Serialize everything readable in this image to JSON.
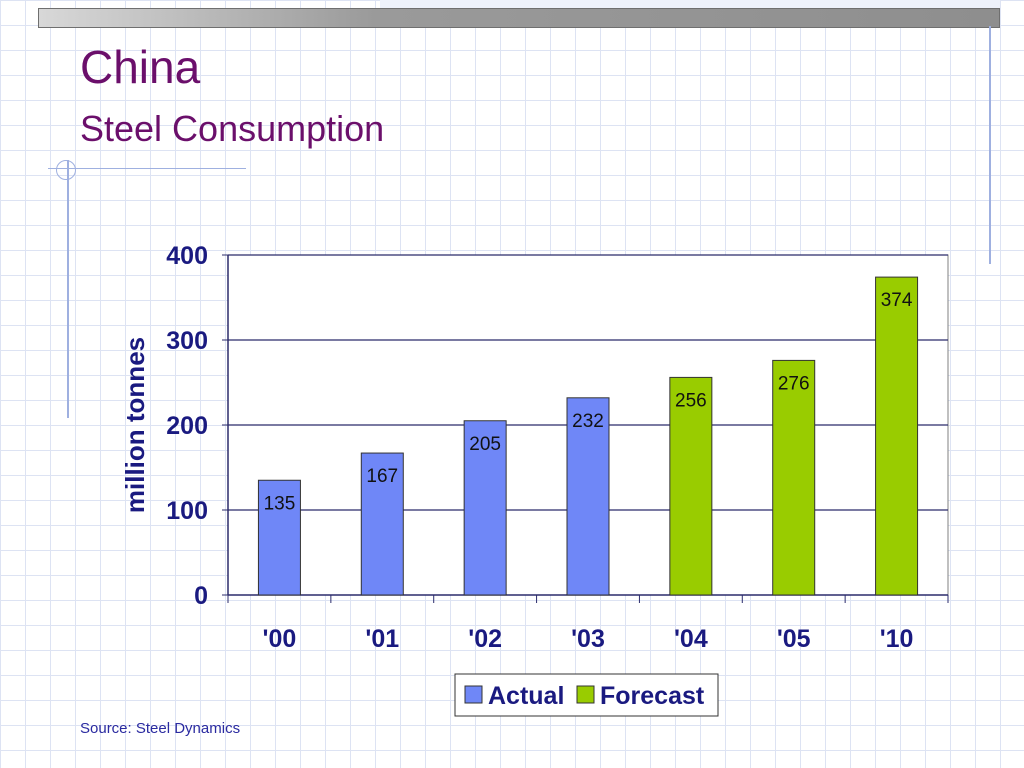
{
  "slide": {
    "title": "China",
    "subtitle": "Steel Consumption",
    "source": "Source: Steel Dynamics"
  },
  "colors": {
    "title": "#6b0f6b",
    "actual": "#6f87f7",
    "forecast": "#99cc00",
    "axis_text": "#1a1a80"
  },
  "chart_data": {
    "type": "bar",
    "categories": [
      "'00",
      "'01",
      "'02",
      "'03",
      "'04",
      "'05",
      "'10"
    ],
    "values": [
      135,
      167,
      205,
      232,
      256,
      276,
      374
    ],
    "value_labels": [
      "135",
      "167",
      "205",
      "232",
      "256",
      "276",
      "374"
    ],
    "series_of_bar": [
      "Actual",
      "Actual",
      "Actual",
      "Actual",
      "Forecast",
      "Forecast",
      "Forecast"
    ],
    "legend": [
      {
        "name": "Actual",
        "color": "#6f87f7"
      },
      {
        "name": "Forecast",
        "color": "#99cc00"
      }
    ],
    "title": "",
    "xlabel": "",
    "ylabel": "million tonnes",
    "ylim": [
      0,
      400
    ],
    "yticks": [
      0,
      100,
      200,
      300,
      400
    ],
    "ytick_labels": [
      "0",
      "100",
      "200",
      "300",
      "400"
    ],
    "grid": true,
    "legend_position": "bottom"
  }
}
